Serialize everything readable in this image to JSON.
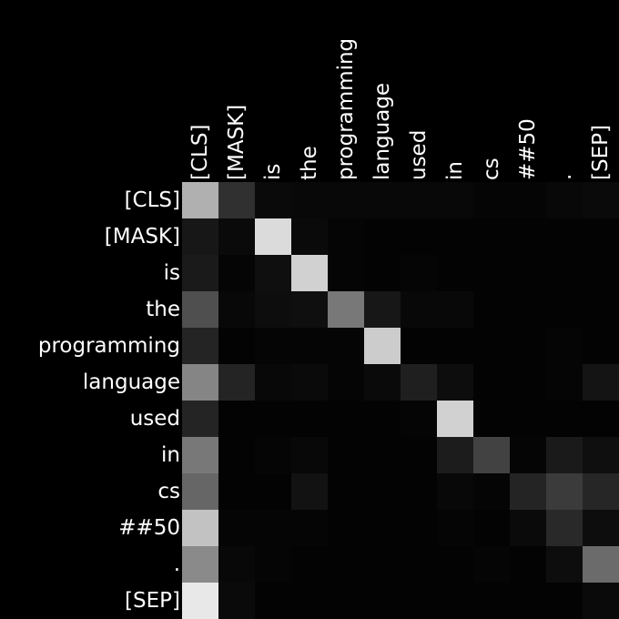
{
  "chart_data": {
    "type": "heatmap",
    "row_labels": [
      "[CLS]",
      "[MASK]",
      "is",
      "the",
      "programming",
      "language",
      "used",
      "in",
      "cs",
      "##50",
      ".",
      "[SEP]"
    ],
    "col_labels": [
      "[CLS]",
      "[MASK]",
      "is",
      "the",
      "programming",
      "language",
      "used",
      "in",
      "cs",
      "##50",
      ".",
      "[SEP]"
    ],
    "colormap": "gray",
    "values": [
      [
        0.69,
        0.19,
        0.04,
        0.03,
        0.03,
        0.03,
        0.03,
        0.03,
        0.02,
        0.02,
        0.03,
        0.04
      ],
      [
        0.09,
        0.04,
        0.86,
        0.04,
        0.02,
        0.01,
        0.01,
        0.01,
        0.01,
        0.01,
        0.01,
        0.01
      ],
      [
        0.1,
        0.02,
        0.06,
        0.82,
        0.02,
        0.01,
        0.02,
        0.01,
        0.01,
        0.01,
        0.01,
        0.01
      ],
      [
        0.31,
        0.03,
        0.05,
        0.06,
        0.47,
        0.09,
        0.03,
        0.03,
        0.01,
        0.01,
        0.01,
        0.01
      ],
      [
        0.14,
        0.01,
        0.02,
        0.02,
        0.02,
        0.8,
        0.01,
        0.01,
        0.01,
        0.01,
        0.02,
        0.01
      ],
      [
        0.52,
        0.14,
        0.03,
        0.04,
        0.02,
        0.04,
        0.12,
        0.05,
        0.01,
        0.01,
        0.02,
        0.08
      ],
      [
        0.14,
        0.01,
        0.01,
        0.01,
        0.01,
        0.01,
        0.02,
        0.82,
        0.01,
        0.01,
        0.01,
        0.01
      ],
      [
        0.47,
        0.01,
        0.02,
        0.03,
        0.01,
        0.01,
        0.01,
        0.11,
        0.26,
        0.02,
        0.1,
        0.06
      ],
      [
        0.4,
        0.01,
        0.01,
        0.07,
        0.01,
        0.01,
        0.01,
        0.03,
        0.02,
        0.14,
        0.23,
        0.15
      ],
      [
        0.76,
        0.02,
        0.02,
        0.02,
        0.01,
        0.01,
        0.01,
        0.02,
        0.01,
        0.04,
        0.16,
        0.05
      ],
      [
        0.54,
        0.03,
        0.02,
        0.01,
        0.01,
        0.01,
        0.01,
        0.01,
        0.02,
        0.01,
        0.05,
        0.42
      ],
      [
        0.91,
        0.04,
        0.01,
        0.01,
        0.01,
        0.01,
        0.01,
        0.01,
        0.01,
        0.01,
        0.01,
        0.04
      ]
    ]
  }
}
